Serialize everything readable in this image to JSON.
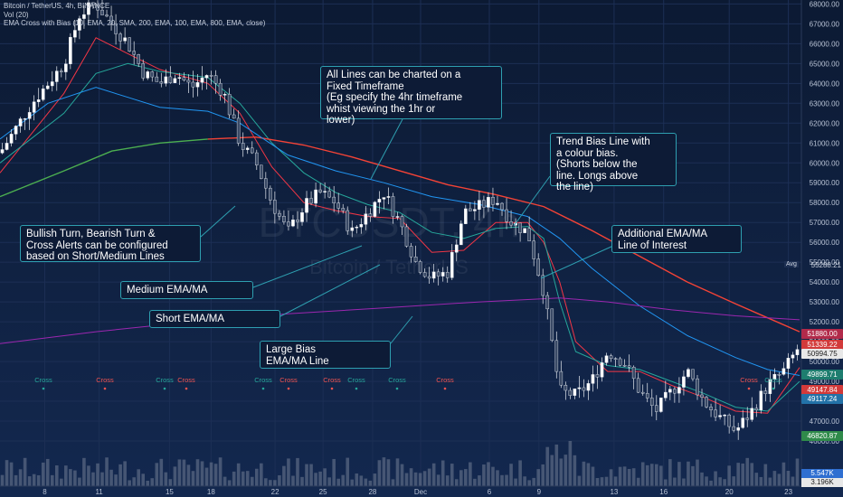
{
  "legend": {
    "line1": "Bitcoin / TetherUS, 4h, BINANCE",
    "line2": "Vol (20)",
    "line3": "EMA Cross with Bias (10, EMA, 20, SMA, 200, EMA, 100, EMA, 800, EMA, close)"
  },
  "watermark": {
    "symbol": "BTCUSDT, 4h",
    "name": "Bitcoin / TetherUS"
  },
  "callouts": {
    "all_lines": "All Lines can be charted on a\nFixed Timeframe\n(Eg specify the 4hr timeframe\nwhist viewing the 1hr or\nlower)",
    "trend_bias": "Trend Bias Line with\na colour bias.\n(Shorts below the\nline. Longs above\nthe line)",
    "alerts": "Bullish Turn, Bearish Turn &\nCross Alerts can be configured\nbased on Short/Medium Lines",
    "additional": "Additional EMA/MA\nLine of Interest",
    "medium": "Medium EMA/MA",
    "short": "Short EMA/MA",
    "large": "Large Bias\nEMA/MA Line"
  },
  "cross_label": "Cross",
  "avg_label": "Avg",
  "price_tags": {
    "avg": "55288.21",
    "t1": "51880.00",
    "t2": "51339.22",
    "t3": "50994.75",
    "t4": "49899.71",
    "t5": "49147.84",
    "t6": "49117.24",
    "t7": "46820.87",
    "v1": "5.547K",
    "v2": "3.196K"
  },
  "colors": {
    "up": "#26a69a",
    "down": "#ef5350",
    "short_ema": "#f23645",
    "medium_ema": "#26a69a",
    "trend_bias_bear": "#f44336",
    "trend_bias_bull": "#4caf50",
    "additional_ema": "#2196f3",
    "large_bias": "#9c27b0",
    "callout_border": "#2e9fb0"
  },
  "chart_data": {
    "type": "candlestick",
    "symbol": "Bitcoin / TetherUS",
    "timeframe": "4h",
    "exchange": "BINANCE",
    "y_axis": {
      "range": [
        45000,
        68200
      ],
      "ticks": [
        46000,
        47000,
        48000,
        49000,
        50000,
        51000,
        52000,
        53000,
        54000,
        55000,
        56000,
        57000,
        58000,
        59000,
        60000,
        61000,
        62000,
        63000,
        64000,
        65000,
        66000,
        67000,
        68000
      ]
    },
    "x_ticks": [
      "8",
      "11",
      "15",
      "18",
      "22",
      "25",
      "28",
      "Dec",
      "6",
      "9",
      "13",
      "16",
      "20",
      "23"
    ],
    "price_path": [
      [
        0,
        60500
      ],
      [
        2,
        63000
      ],
      [
        4,
        65000
      ],
      [
        5,
        67500
      ],
      [
        6,
        68000
      ],
      [
        7,
        67000
      ],
      [
        8,
        66000
      ],
      [
        9,
        64500
      ],
      [
        10,
        64000
      ],
      [
        11,
        64500
      ],
      [
        12,
        63800
      ],
      [
        13,
        64500
      ],
      [
        14,
        63500
      ],
      [
        15,
        61000
      ],
      [
        16,
        60000
      ],
      [
        17,
        58000
      ],
      [
        18,
        56500
      ],
      [
        19,
        57800
      ],
      [
        20,
        58500
      ],
      [
        21,
        58000
      ],
      [
        22,
        56500
      ],
      [
        23,
        57500
      ],
      [
        24,
        58500
      ],
      [
        25,
        57000
      ],
      [
        26,
        55000
      ],
      [
        27,
        54200
      ],
      [
        28,
        54500
      ],
      [
        29,
        57500
      ],
      [
        30,
        57800
      ],
      [
        31,
        58200
      ],
      [
        32,
        57000
      ],
      [
        33,
        56500
      ],
      [
        34,
        53500
      ],
      [
        35,
        48500
      ],
      [
        36,
        48300
      ],
      [
        37,
        49000
      ],
      [
        38,
        50500
      ],
      [
        39,
        50000
      ],
      [
        40,
        48500
      ],
      [
        41,
        47500
      ],
      [
        42,
        48500
      ],
      [
        43,
        49500
      ],
      [
        44,
        48000
      ],
      [
        45,
        47200
      ],
      [
        46,
        46500
      ],
      [
        47,
        47500
      ],
      [
        48,
        48800
      ],
      [
        49,
        49500
      ],
      [
        50,
        50800
      ]
    ],
    "series": [
      {
        "name": "Short EMA/MA",
        "values": [
          [
            0,
            59500
          ],
          [
            4,
            63500
          ],
          [
            6,
            66300
          ],
          [
            8,
            65500
          ],
          [
            10,
            64700
          ],
          [
            13,
            64000
          ],
          [
            15,
            62500
          ],
          [
            17,
            59800
          ],
          [
            19,
            58000
          ],
          [
            21,
            57600
          ],
          [
            23,
            57300
          ],
          [
            25,
            57200
          ],
          [
            27,
            55500
          ],
          [
            29,
            55600
          ],
          [
            31,
            57000
          ],
          [
            33,
            57000
          ],
          [
            34,
            56000
          ],
          [
            35,
            54000
          ],
          [
            36,
            51000
          ],
          [
            38,
            49500
          ],
          [
            40,
            49500
          ],
          [
            42,
            48800
          ],
          [
            44,
            48200
          ],
          [
            46,
            47500
          ],
          [
            48,
            47400
          ],
          [
            50,
            49700
          ]
        ]
      },
      {
        "name": "Medium EMA/MA",
        "values": [
          [
            0,
            60000
          ],
          [
            4,
            62500
          ],
          [
            6,
            64500
          ],
          [
            8,
            65000
          ],
          [
            10,
            64600
          ],
          [
            13,
            64300
          ],
          [
            15,
            63000
          ],
          [
            17,
            61000
          ],
          [
            19,
            59500
          ],
          [
            21,
            58500
          ],
          [
            23,
            57900
          ],
          [
            25,
            57500
          ],
          [
            27,
            56500
          ],
          [
            29,
            56200
          ],
          [
            31,
            56700
          ],
          [
            33,
            56800
          ],
          [
            34,
            56200
          ],
          [
            35,
            53000
          ],
          [
            36,
            50500
          ],
          [
            38,
            49800
          ],
          [
            40,
            49600
          ],
          [
            42,
            49000
          ],
          [
            44,
            48400
          ],
          [
            46,
            47700
          ],
          [
            48,
            47500
          ],
          [
            50,
            49000
          ]
        ]
      },
      {
        "name": "Trend Bias Line",
        "values": [
          [
            0,
            58300
          ],
          [
            4,
            59600
          ],
          [
            7,
            60600
          ],
          [
            10,
            61000
          ],
          [
            13,
            61200
          ],
          [
            16,
            61300
          ],
          [
            19,
            60900
          ],
          [
            22,
            60300
          ],
          [
            25,
            59600
          ],
          [
            28,
            58900
          ],
          [
            31,
            58400
          ],
          [
            34,
            57800
          ],
          [
            37,
            56600
          ],
          [
            40,
            55300
          ],
          [
            43,
            54000
          ],
          [
            46,
            52900
          ],
          [
            48,
            52200
          ],
          [
            50,
            51500
          ]
        ]
      },
      {
        "name": "Additional EMA/MA Line of Interest",
        "values": [
          [
            0,
            61200
          ],
          [
            3,
            63000
          ],
          [
            6,
            63800
          ],
          [
            8,
            63300
          ],
          [
            10,
            62800
          ],
          [
            13,
            62600
          ],
          [
            15,
            62000
          ],
          [
            18,
            60400
          ],
          [
            21,
            59600
          ],
          [
            24,
            59000
          ],
          [
            27,
            58300
          ],
          [
            30,
            57900
          ],
          [
            33,
            57300
          ],
          [
            35,
            56200
          ],
          [
            37,
            54700
          ],
          [
            40,
            52800
          ],
          [
            43,
            51300
          ],
          [
            46,
            50200
          ],
          [
            48,
            49600
          ],
          [
            50,
            49300
          ]
        ]
      },
      {
        "name": "Large Bias EMA/MA Line",
        "values": [
          [
            0,
            50900
          ],
          [
            6,
            51500
          ],
          [
            12,
            52000
          ],
          [
            18,
            52400
          ],
          [
            24,
            52700
          ],
          [
            30,
            53000
          ],
          [
            35,
            53200
          ],
          [
            38,
            53000
          ],
          [
            42,
            52600
          ],
          [
            46,
            52300
          ],
          [
            50,
            52100
          ]
        ]
      }
    ],
    "cross_markers": [
      {
        "label": "Cross",
        "x": 4.0,
        "color": "#26a69a"
      },
      {
        "label": "Cross",
        "x": 10.0,
        "color": "#ef5350"
      },
      {
        "label": "Cross",
        "x": 15.5,
        "color": "#26a69a"
      },
      {
        "label": "Cross",
        "x": 17.2,
        "color": "#ef5350"
      },
      {
        "label": "Cross",
        "x": 24.2,
        "color": "#26a69a"
      },
      {
        "label": "Cross",
        "x": 26.3,
        "color": "#ef5350"
      },
      {
        "label": "Cross",
        "x": 30.0,
        "color": "#ef5350"
      },
      {
        "label": "Cross",
        "x": 32.8,
        "color": "#26a69a"
      },
      {
        "label": "Cross",
        "x": 36.6,
        "color": "#26a69a"
      },
      {
        "label": "Cross",
        "x": 41.5,
        "color": "#ef5350"
      },
      {
        "label": "Cross",
        "x": 67.5,
        "color": "#ef5350"
      },
      {
        "label": "Cross",
        "x": 70.5,
        "color": "#26a69a"
      }
    ],
    "grid": true,
    "legend": "top-left"
  }
}
